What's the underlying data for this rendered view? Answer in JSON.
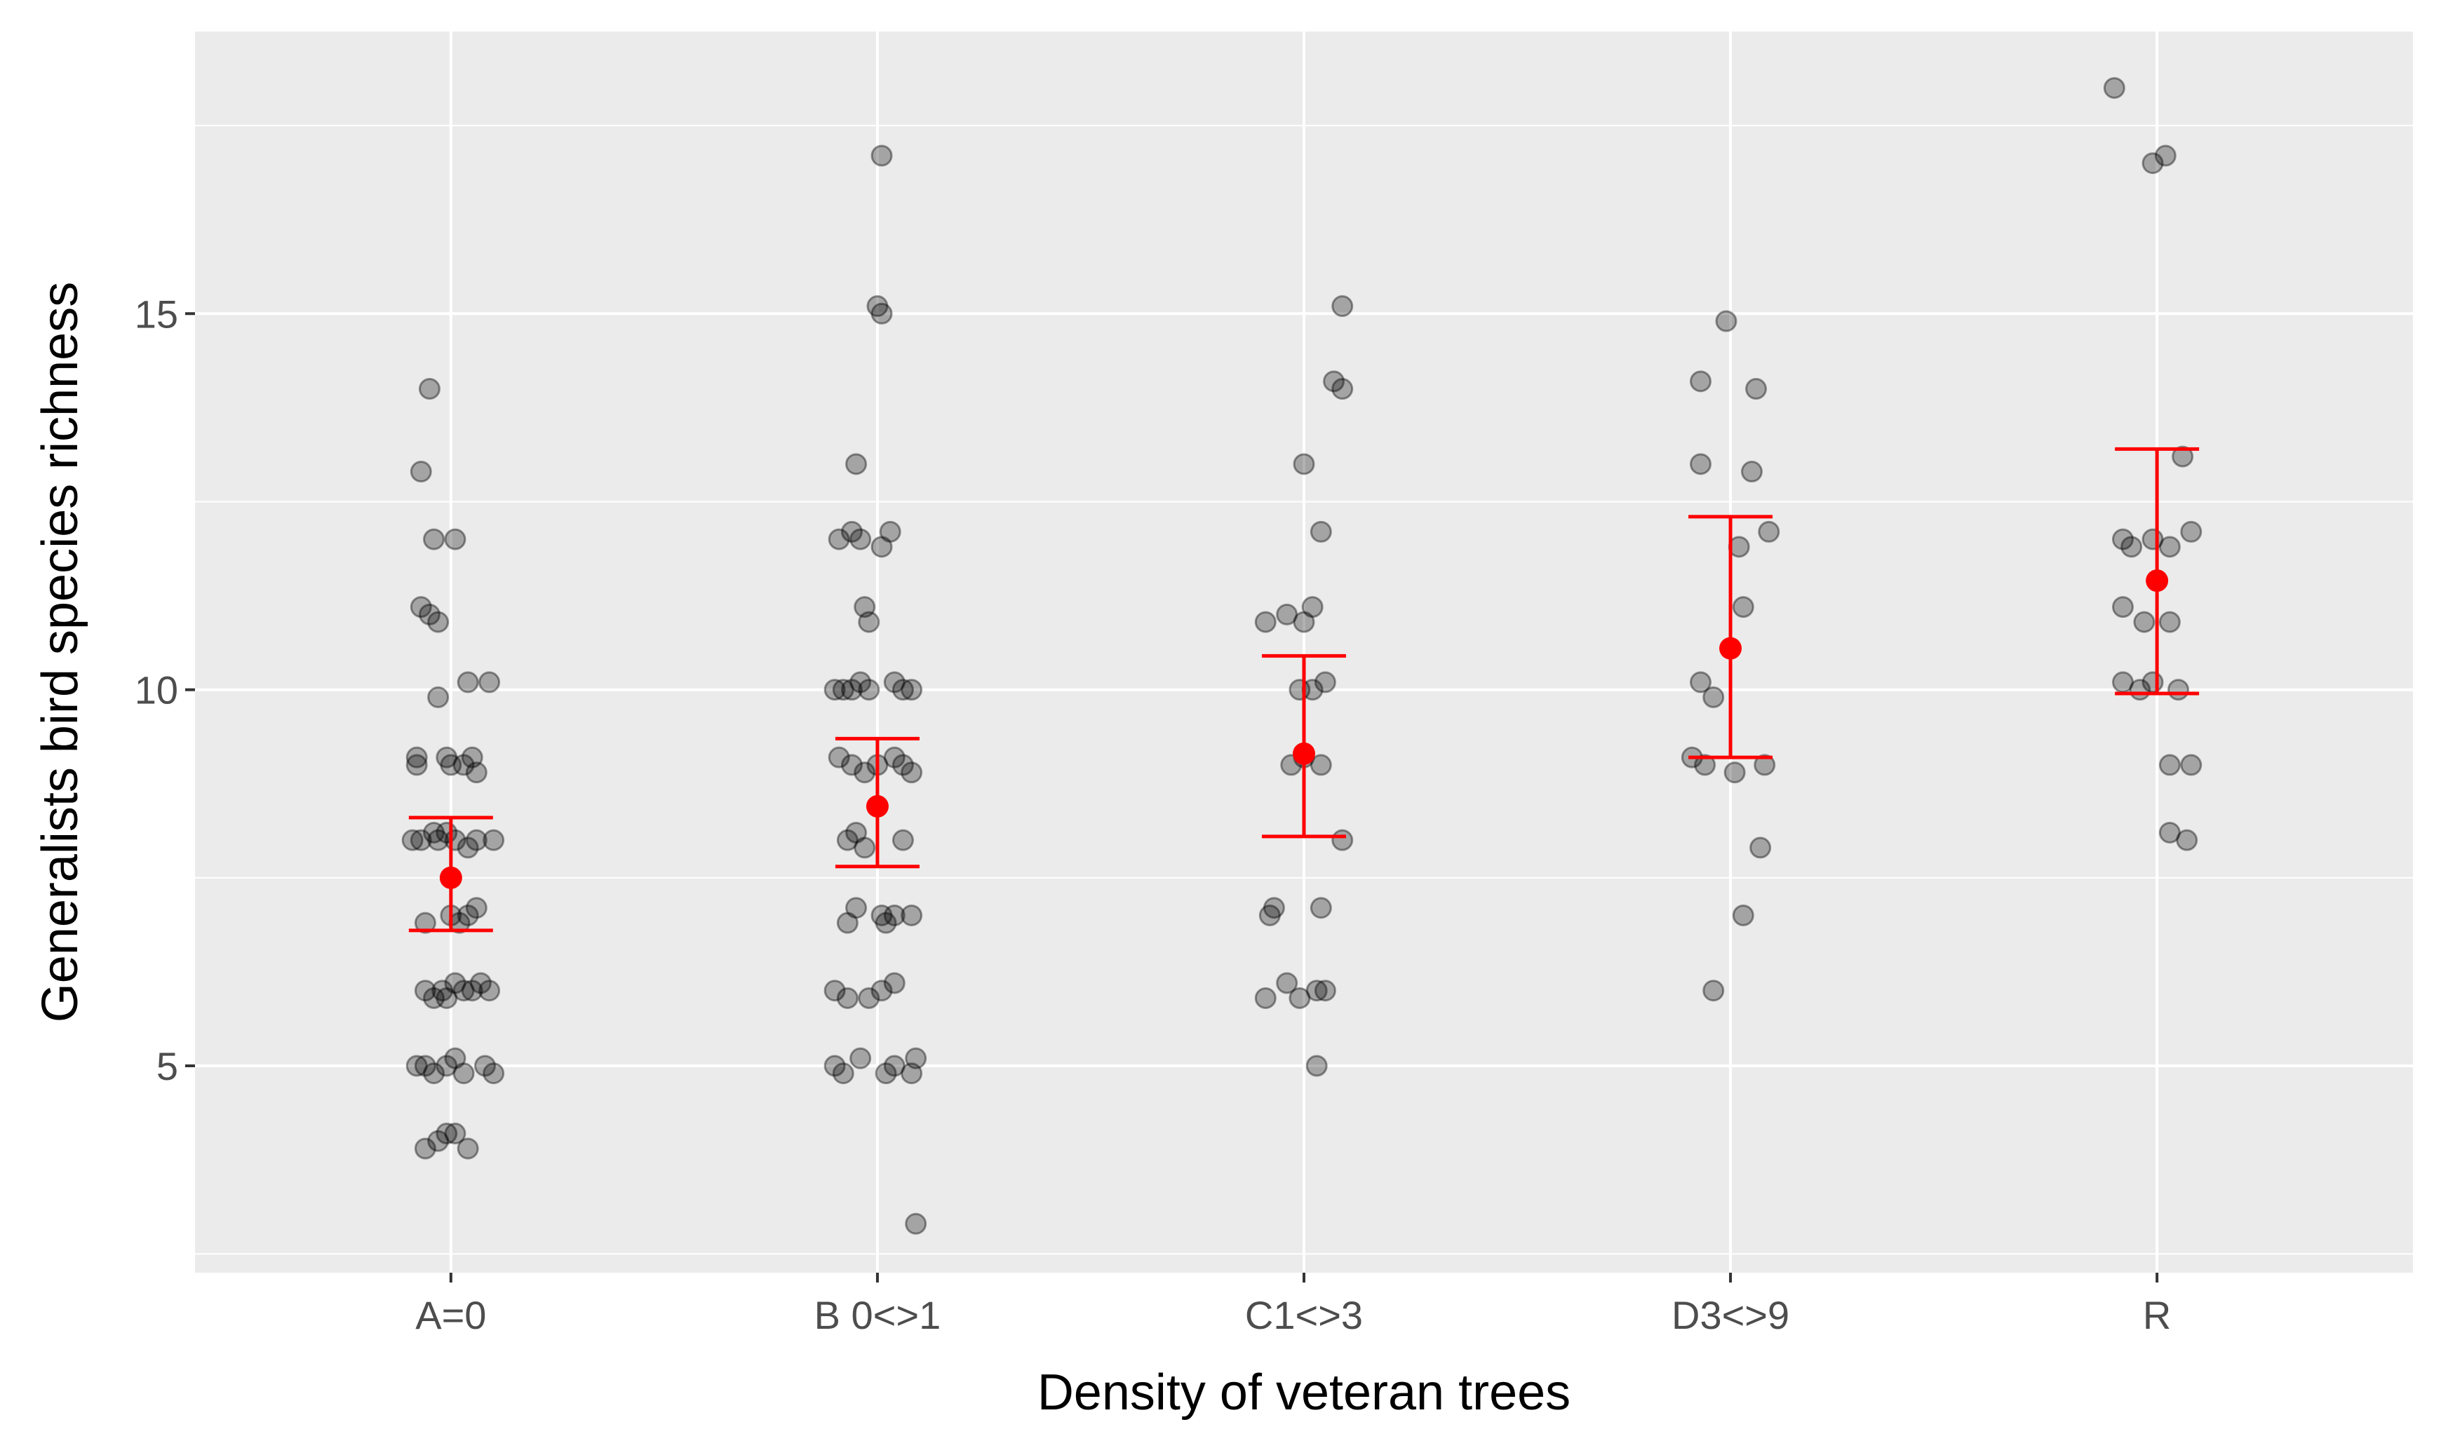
{
  "chart_data": {
    "type": "scatter",
    "xlabel": "Density of veteran trees",
    "ylabel": "Generalists bird species richness",
    "categories": [
      "A=0",
      "B 0<>1",
      "C1<>3",
      "D3<>9",
      "R"
    ],
    "ylim": [
      2.25,
      18.75
    ],
    "yticks": [
      5,
      10,
      15
    ],
    "grid": true,
    "legend": "none",
    "colors": {
      "panel": "#EBEBEB",
      "grid": "#FFFFFF",
      "points": "#000000",
      "summary": "#FF0000"
    },
    "points": [
      [
        {
          "x": 0.95,
          "y": 14.0
        },
        {
          "x": 0.93,
          "y": 12.9
        },
        {
          "x": 0.96,
          "y": 12.0
        },
        {
          "x": 1.01,
          "y": 12.0
        },
        {
          "x": 0.93,
          "y": 11.1
        },
        {
          "x": 0.95,
          "y": 11.0
        },
        {
          "x": 0.97,
          "y": 10.9
        },
        {
          "x": 0.97,
          "y": 9.9
        },
        {
          "x": 1.04,
          "y": 10.1
        },
        {
          "x": 1.09,
          "y": 10.1
        },
        {
          "x": 0.92,
          "y": 9.1
        },
        {
          "x": 0.92,
          "y": 9.0
        },
        {
          "x": 0.99,
          "y": 9.1
        },
        {
          "x": 1.0,
          "y": 9.0
        },
        {
          "x": 1.03,
          "y": 9.0
        },
        {
          "x": 1.05,
          "y": 9.1
        },
        {
          "x": 1.06,
          "y": 8.9
        },
        {
          "x": 0.91,
          "y": 8.0
        },
        {
          "x": 0.93,
          "y": 8.0
        },
        {
          "x": 0.96,
          "y": 8.1
        },
        {
          "x": 0.97,
          "y": 8.0
        },
        {
          "x": 0.99,
          "y": 8.1
        },
        {
          "x": 1.01,
          "y": 8.0
        },
        {
          "x": 1.04,
          "y": 7.9
        },
        {
          "x": 1.06,
          "y": 8.0
        },
        {
          "x": 1.1,
          "y": 8.0
        },
        {
          "x": 0.94,
          "y": 6.9
        },
        {
          "x": 1.0,
          "y": 7.0
        },
        {
          "x": 1.02,
          "y": 6.9
        },
        {
          "x": 1.04,
          "y": 7.0
        },
        {
          "x": 1.06,
          "y": 7.1
        },
        {
          "x": 0.94,
          "y": 6.0
        },
        {
          "x": 0.96,
          "y": 5.9
        },
        {
          "x": 0.98,
          "y": 6.0
        },
        {
          "x": 0.99,
          "y": 5.9
        },
        {
          "x": 1.01,
          "y": 6.1
        },
        {
          "x": 1.03,
          "y": 6.0
        },
        {
          "x": 1.05,
          "y": 6.0
        },
        {
          "x": 1.07,
          "y": 6.1
        },
        {
          "x": 1.09,
          "y": 6.0
        },
        {
          "x": 0.92,
          "y": 5.0
        },
        {
          "x": 0.94,
          "y": 5.0
        },
        {
          "x": 0.96,
          "y": 4.9
        },
        {
          "x": 0.99,
          "y": 5.0
        },
        {
          "x": 1.01,
          "y": 5.1
        },
        {
          "x": 1.03,
          "y": 4.9
        },
        {
          "x": 1.08,
          "y": 5.0
        },
        {
          "x": 1.1,
          "y": 4.9
        },
        {
          "x": 0.94,
          "y": 3.9
        },
        {
          "x": 0.97,
          "y": 4.0
        },
        {
          "x": 0.99,
          "y": 4.1
        },
        {
          "x": 1.01,
          "y": 4.1
        },
        {
          "x": 1.04,
          "y": 3.9
        }
      ],
      [
        {
          "x": 2.01,
          "y": 17.1
        },
        {
          "x": 2.0,
          "y": 15.1
        },
        {
          "x": 2.01,
          "y": 15.0
        },
        {
          "x": 1.95,
          "y": 13.0
        },
        {
          "x": 1.91,
          "y": 12.0
        },
        {
          "x": 1.94,
          "y": 12.1
        },
        {
          "x": 1.96,
          "y": 12.0
        },
        {
          "x": 2.01,
          "y": 11.9
        },
        {
          "x": 2.03,
          "y": 12.1
        },
        {
          "x": 1.97,
          "y": 11.1
        },
        {
          "x": 1.98,
          "y": 10.9
        },
        {
          "x": 1.9,
          "y": 10.0
        },
        {
          "x": 1.92,
          "y": 10.0
        },
        {
          "x": 1.94,
          "y": 10.0
        },
        {
          "x": 1.96,
          "y": 10.1
        },
        {
          "x": 1.98,
          "y": 10.0
        },
        {
          "x": 2.04,
          "y": 10.1
        },
        {
          "x": 2.06,
          "y": 10.0
        },
        {
          "x": 2.08,
          "y": 10.0
        },
        {
          "x": 1.91,
          "y": 9.1
        },
        {
          "x": 1.94,
          "y": 9.0
        },
        {
          "x": 1.97,
          "y": 8.9
        },
        {
          "x": 2.0,
          "y": 9.0
        },
        {
          "x": 2.04,
          "y": 9.1
        },
        {
          "x": 2.06,
          "y": 9.0
        },
        {
          "x": 2.08,
          "y": 8.9
        },
        {
          "x": 1.93,
          "y": 8.0
        },
        {
          "x": 1.95,
          "y": 8.1
        },
        {
          "x": 1.97,
          "y": 7.9
        },
        {
          "x": 2.06,
          "y": 8.0
        },
        {
          "x": 1.93,
          "y": 6.9
        },
        {
          "x": 1.95,
          "y": 7.1
        },
        {
          "x": 2.01,
          "y": 7.0
        },
        {
          "x": 2.02,
          "y": 6.9
        },
        {
          "x": 2.04,
          "y": 7.0
        },
        {
          "x": 2.08,
          "y": 7.0
        },
        {
          "x": 1.9,
          "y": 6.0
        },
        {
          "x": 1.93,
          "y": 5.9
        },
        {
          "x": 1.98,
          "y": 5.9
        },
        {
          "x": 2.01,
          "y": 6.0
        },
        {
          "x": 2.04,
          "y": 6.1
        },
        {
          "x": 1.9,
          "y": 5.0
        },
        {
          "x": 1.92,
          "y": 4.9
        },
        {
          "x": 1.96,
          "y": 5.1
        },
        {
          "x": 2.02,
          "y": 4.9
        },
        {
          "x": 2.04,
          "y": 5.0
        },
        {
          "x": 2.08,
          "y": 4.9
        },
        {
          "x": 2.09,
          "y": 5.1
        },
        {
          "x": 2.09,
          "y": 2.9
        }
      ],
      [
        {
          "x": 3.09,
          "y": 15.1
        },
        {
          "x": 3.07,
          "y": 14.1
        },
        {
          "x": 3.09,
          "y": 14.0
        },
        {
          "x": 3.0,
          "y": 13.0
        },
        {
          "x": 3.04,
          "y": 12.1
        },
        {
          "x": 2.91,
          "y": 10.9
        },
        {
          "x": 2.96,
          "y": 11.0
        },
        {
          "x": 3.0,
          "y": 10.9
        },
        {
          "x": 3.02,
          "y": 11.1
        },
        {
          "x": 2.99,
          "y": 10.0
        },
        {
          "x": 3.02,
          "y": 10.0
        },
        {
          "x": 3.05,
          "y": 10.1
        },
        {
          "x": 2.97,
          "y": 9.0
        },
        {
          "x": 3.0,
          "y": 9.1
        },
        {
          "x": 3.04,
          "y": 9.0
        },
        {
          "x": 3.09,
          "y": 8.0
        },
        {
          "x": 2.92,
          "y": 7.0
        },
        {
          "x": 2.93,
          "y": 7.1
        },
        {
          "x": 3.04,
          "y": 7.1
        },
        {
          "x": 2.91,
          "y": 5.9
        },
        {
          "x": 2.96,
          "y": 6.1
        },
        {
          "x": 2.99,
          "y": 5.9
        },
        {
          "x": 3.03,
          "y": 6.0
        },
        {
          "x": 3.05,
          "y": 6.0
        },
        {
          "x": 3.03,
          "y": 5.0
        }
      ],
      [
        {
          "x": 3.99,
          "y": 14.9
        },
        {
          "x": 3.93,
          "y": 14.1
        },
        {
          "x": 4.06,
          "y": 14.0
        },
        {
          "x": 3.93,
          "y": 13.0
        },
        {
          "x": 4.05,
          "y": 12.9
        },
        {
          "x": 4.02,
          "y": 11.9
        },
        {
          "x": 4.09,
          "y": 12.1
        },
        {
          "x": 4.03,
          "y": 11.1
        },
        {
          "x": 3.93,
          "y": 10.1
        },
        {
          "x": 3.96,
          "y": 9.9
        },
        {
          "x": 3.91,
          "y": 9.1
        },
        {
          "x": 3.94,
          "y": 9.0
        },
        {
          "x": 4.01,
          "y": 8.9
        },
        {
          "x": 4.08,
          "y": 9.0
        },
        {
          "x": 4.07,
          "y": 7.9
        },
        {
          "x": 4.03,
          "y": 7.0
        },
        {
          "x": 3.96,
          "y": 6.0
        }
      ],
      [
        {
          "x": 4.9,
          "y": 18.0
        },
        {
          "x": 4.99,
          "y": 17.0
        },
        {
          "x": 5.02,
          "y": 17.1
        },
        {
          "x": 5.06,
          "y": 13.1
        },
        {
          "x": 4.92,
          "y": 12.0
        },
        {
          "x": 4.94,
          "y": 11.9
        },
        {
          "x": 4.99,
          "y": 12.0
        },
        {
          "x": 5.03,
          "y": 11.9
        },
        {
          "x": 5.08,
          "y": 12.1
        },
        {
          "x": 4.92,
          "y": 11.1
        },
        {
          "x": 4.97,
          "y": 10.9
        },
        {
          "x": 5.03,
          "y": 10.9
        },
        {
          "x": 4.92,
          "y": 10.1
        },
        {
          "x": 4.96,
          "y": 10.0
        },
        {
          "x": 4.99,
          "y": 10.1
        },
        {
          "x": 5.05,
          "y": 10.0
        },
        {
          "x": 5.03,
          "y": 9.0
        },
        {
          "x": 5.08,
          "y": 9.0
        },
        {
          "x": 5.03,
          "y": 8.1
        },
        {
          "x": 5.07,
          "y": 8.0
        }
      ]
    ],
    "summary": [
      {
        "category": "A=0",
        "mean": 7.5,
        "lower": 6.8,
        "upper": 8.3
      },
      {
        "category": "B 0<>1",
        "mean": 8.45,
        "lower": 7.65,
        "upper": 9.35
      },
      {
        "category": "C1<>3",
        "mean": 9.15,
        "lower": 8.05,
        "upper": 10.45
      },
      {
        "category": "D3<>9",
        "mean": 10.55,
        "lower": 9.1,
        "upper": 12.3
      },
      {
        "category": "R",
        "mean": 11.45,
        "lower": 9.95,
        "upper": 13.2
      }
    ]
  }
}
